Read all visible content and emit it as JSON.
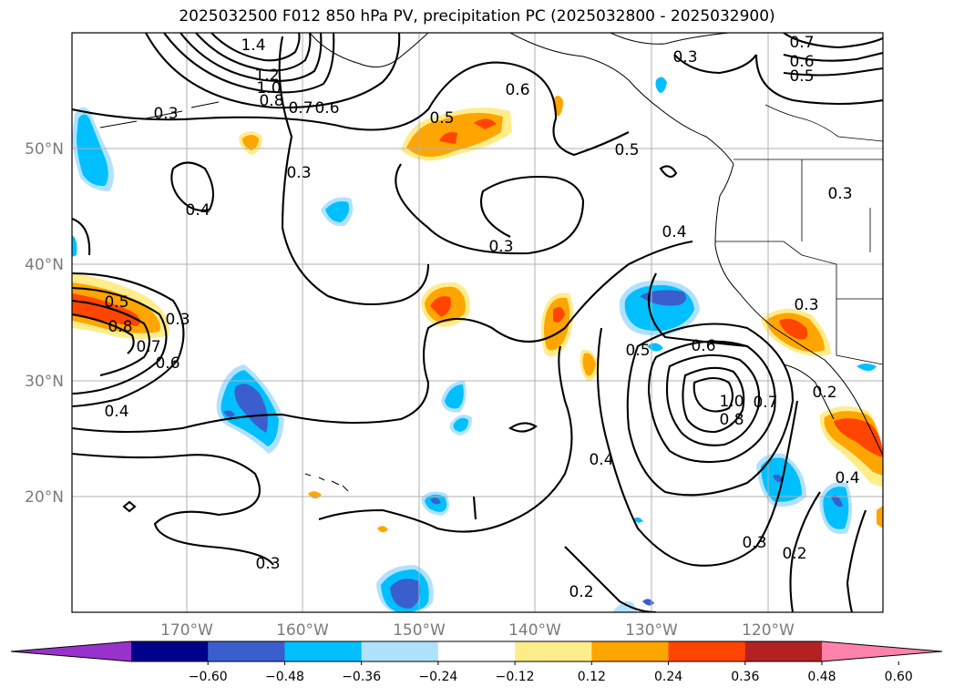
{
  "title": "2025032500 F012 850 hPa PV, precipitation PC (2025032800 - 2025032900)",
  "lat_labels": [
    "50°N",
    "40°N",
    "30°N",
    "20°N"
  ],
  "lon_labels": [
    "170°W",
    "160°W",
    "150°W",
    "140°W",
    "130°W",
    "120°W"
  ],
  "colorbar": {
    "tick_labels": [
      "-0.60",
      "-0.48",
      "-0.36",
      "-0.24",
      "-0.12",
      "0.12",
      "0.24",
      "0.36",
      "0.48",
      "0.60"
    ],
    "colors": [
      "#9932cc",
      "#00008b",
      "#3a5fcd",
      "#00bfff",
      "#b0e2ff",
      "#ffffff",
      "#ffec8b",
      "#ffa500",
      "#ff4500",
      "#b22222",
      "#ff82ab"
    ]
  },
  "contour_labels": [
    "1.4",
    "1.2",
    "1.0",
    "0.8",
    "0.7",
    "0.6",
    "0.3",
    "0.4",
    "0.3",
    "0.5",
    "0.6",
    "0.3",
    "0.7",
    "0.6",
    "0.5",
    "0.3",
    "0.5",
    "0.4",
    "0.3",
    "0.5",
    "0.8",
    "0.7",
    "0.6",
    "0.3",
    "0.4",
    "0.5",
    "0.6",
    "1.0",
    "0.8",
    "0.7",
    "0.3",
    "0.2",
    "0.4",
    "0.4",
    "0.3",
    "0.2",
    "0.3",
    "0.2"
  ]
}
